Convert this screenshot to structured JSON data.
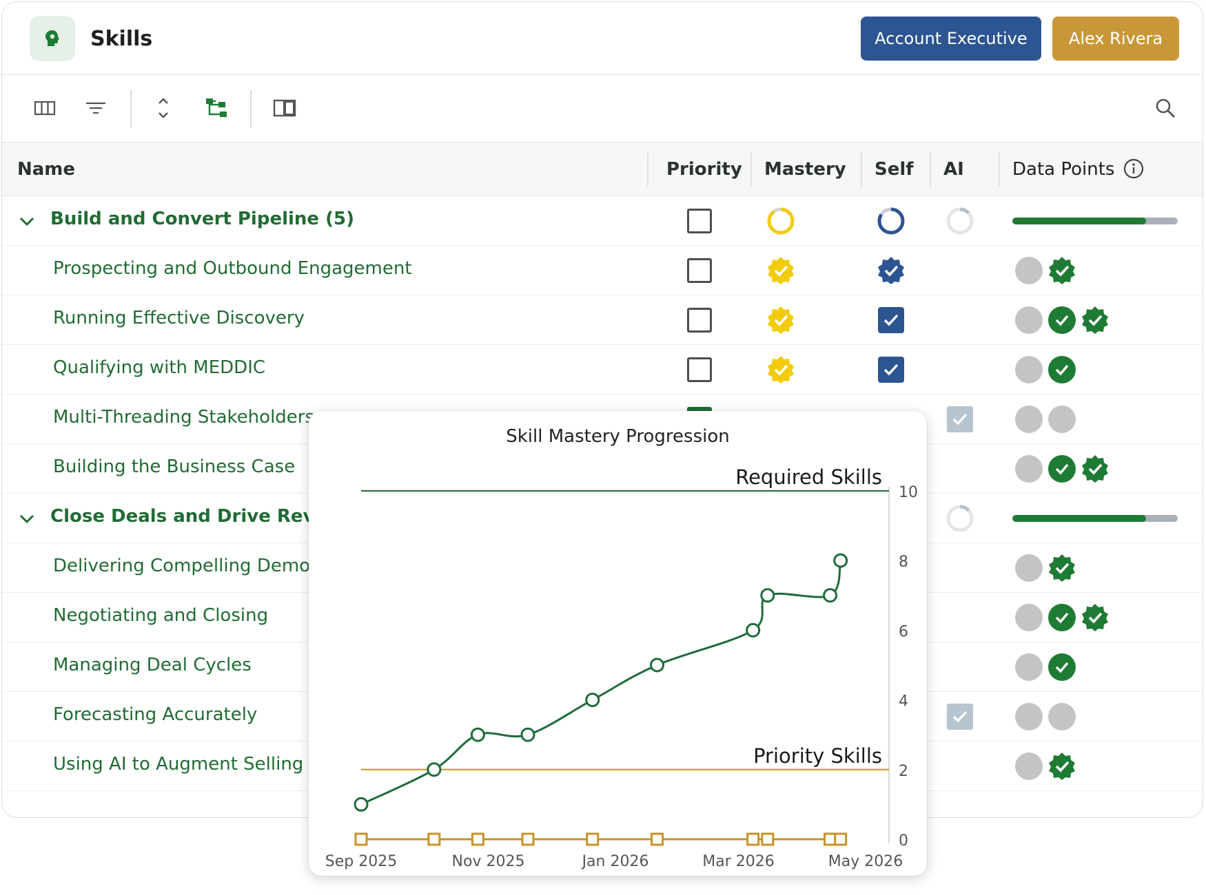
{
  "header": {
    "title": "Skills",
    "role_label": "Account Executive",
    "user_label": "Alex Rivera"
  },
  "toolbar": {
    "icons": [
      "columns-icon",
      "filter-icon",
      "expand-collapse-icon",
      "hierarchy-icon",
      "panel-icon",
      "search-icon"
    ]
  },
  "table": {
    "columns": {
      "name": "Name",
      "priority": "Priority",
      "mastery": "Mastery",
      "self": "Self",
      "ai": "AI",
      "data_points": "Data Points"
    },
    "groups": [
      {
        "label": "Build and Convert Pipeline (5)",
        "progress": 0.81,
        "items": [
          {
            "label": "Prospecting and Outbound Engagement",
            "priority": false,
            "mastery": "verified-gold",
            "self": "verified-blue",
            "ai": null,
            "points": [
              "grey",
              "badge"
            ]
          },
          {
            "label": "Running Effective Discovery",
            "priority": false,
            "mastery": "verified-gold",
            "self": "checked",
            "ai": null,
            "points": [
              "grey",
              "check",
              "badge"
            ]
          },
          {
            "label": "Qualifying with MEDDIC",
            "priority": false,
            "mastery": "verified-gold",
            "self": "checked",
            "ai": null,
            "points": [
              "grey",
              "check"
            ]
          },
          {
            "label": "Multi-Threading Stakeholders",
            "priority": true,
            "mastery": null,
            "self": null,
            "ai": "checked",
            "points": [
              "grey",
              "grey"
            ]
          },
          {
            "label": "Building the Business Case",
            "priority": null,
            "mastery": null,
            "self": null,
            "ai": null,
            "points": [
              "grey",
              "check",
              "badge"
            ]
          }
        ]
      },
      {
        "label": "Close Deals and Drive Revenue",
        "progress": 0.81,
        "items": [
          {
            "label": "Delivering Compelling Demos",
            "points": [
              "grey",
              "badge"
            ]
          },
          {
            "label": "Negotiating and Closing",
            "points": [
              "grey",
              "check",
              "badge"
            ]
          },
          {
            "label": "Managing Deal Cycles",
            "points": [
              "grey",
              "check"
            ]
          },
          {
            "label": "Forecasting Accurately",
            "ai": "checked",
            "points": [
              "grey",
              "grey"
            ]
          },
          {
            "label": "Using AI to Augment Selling",
            "points": [
              "grey",
              "badge"
            ]
          }
        ]
      }
    ]
  },
  "colors": {
    "brand_green": "#1e7b34",
    "role_blue": "#2c5591",
    "user_gold": "#c89838",
    "mastery_yellow": "#f2cc0c"
  },
  "chart_data": {
    "type": "line",
    "title": "Skill Mastery Progression",
    "x_ticks": [
      "Sep 2025",
      "Nov 2025",
      "Jan 2026",
      "Mar 2026",
      "May 2026"
    ],
    "y_ticks": [
      "0",
      "2",
      "4",
      "6",
      "8",
      "10"
    ],
    "ylim": [
      0,
      10
    ],
    "reference_lines": [
      {
        "label": "Required Skills",
        "y": 10,
        "color": "#1e6b3a"
      },
      {
        "label": "Priority Skills",
        "y": 2,
        "color": "#c8922a"
      }
    ],
    "series": [
      {
        "color": "#1e6b3a",
        "marker": "circle",
        "x": [
          "2025-09-01",
          "2025-10-06",
          "2025-10-27",
          "2025-11-20",
          "2025-12-21",
          "2026-01-21",
          "2026-03-08",
          "2026-03-15",
          "2026-04-14",
          "2026-04-19"
        ],
        "values": [
          1,
          2,
          3,
          3,
          4,
          5,
          6,
          7,
          7,
          8
        ]
      },
      {
        "color": "#c8922a",
        "marker": "square",
        "x": [
          "2025-09-01",
          "2025-10-06",
          "2025-10-27",
          "2025-11-20",
          "2025-12-21",
          "2026-01-21",
          "2026-03-08",
          "2026-03-15",
          "2026-04-14",
          "2026-04-19"
        ],
        "values": [
          0,
          0,
          0,
          0,
          0,
          0,
          0,
          0,
          0,
          0
        ]
      }
    ]
  }
}
